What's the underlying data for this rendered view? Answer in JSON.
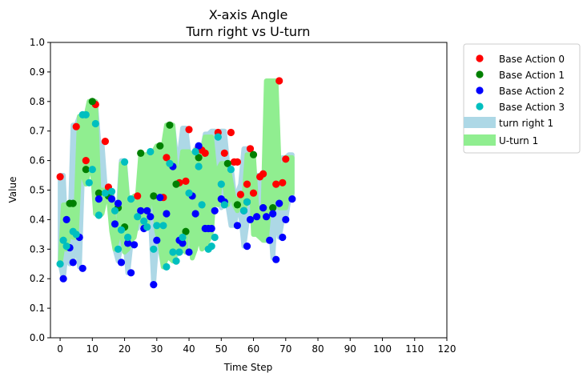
{
  "chart_data": {
    "type": "scatter",
    "title_line1": "X-axis Angle",
    "title_line2": "Turn right vs U-turn",
    "xlabel": "Time Step",
    "ylabel": "Value",
    "xlim": [
      -3,
      120
    ],
    "ylim": [
      0.0,
      1.0
    ],
    "xticks": [
      0,
      10,
      20,
      30,
      40,
      50,
      60,
      70,
      80,
      90,
      100,
      110,
      120
    ],
    "yticks": [
      0.0,
      0.1,
      0.2,
      0.3,
      0.4,
      0.5,
      0.6,
      0.7,
      0.8,
      0.9,
      1.0
    ],
    "xtick_labels": [
      "0",
      "10",
      "20",
      "30",
      "40",
      "50",
      "60",
      "70",
      "80",
      "90",
      "100",
      "110",
      "120"
    ],
    "ytick_labels": [
      "0.0",
      "0.1",
      "0.2",
      "0.3",
      "0.4",
      "0.5",
      "0.6",
      "0.7",
      "0.8",
      "0.9",
      "1.0"
    ],
    "legend_position": "outside upper right",
    "bands": [
      {
        "name": "turn right 1",
        "color": "#add8e6",
        "x": [
          0,
          1,
          2,
          3,
          4,
          5,
          6,
          7,
          8,
          9,
          10,
          11,
          12,
          13,
          14,
          15,
          16,
          17,
          18,
          19,
          20,
          21,
          22,
          23,
          24,
          25,
          26,
          27,
          28,
          29,
          30,
          31,
          32,
          33,
          34,
          35,
          36,
          37,
          38,
          39,
          40,
          41,
          42,
          43,
          44,
          45,
          46,
          47,
          48,
          49,
          50,
          51,
          52,
          53,
          54,
          55,
          56,
          57,
          58,
          59,
          60,
          61,
          62,
          63,
          64,
          65,
          66,
          67,
          68,
          69,
          70,
          71,
          72
        ],
        "lower": [
          0.25,
          0.2,
          0.3,
          0.25,
          0.26,
          0.34,
          0.24,
          0.57,
          0.57,
          0.57,
          0.79,
          0.42,
          0.47,
          0.49,
          0.51,
          0.49,
          0.39,
          0.3,
          0.26,
          0.32,
          0.34,
          0.22,
          0.32,
          0.37,
          0.37,
          0.43,
          0.44,
          0.44,
          0.41,
          0.18,
          0.33,
          0.3,
          0.24,
          0.42,
          0.29,
          0.26,
          0.28,
          0.34,
          0.32,
          0.29,
          0.3,
          0.29,
          0.42,
          0.36,
          0.37,
          0.37,
          0.34,
          0.43,
          0.45,
          0.46,
          0.44,
          0.45,
          0.45,
          0.38,
          0.38,
          0.43,
          0.42,
          0.31,
          0.39,
          0.4,
          0.4,
          0.44,
          0.41,
          0.33,
          0.33,
          0.42,
          0.27,
          0.46,
          0.34,
          0.4,
          0.4,
          0.47,
          0.47
        ],
        "upper": [
          0.55,
          0.55,
          0.3,
          0.35,
          0.72,
          0.72,
          0.75,
          0.75,
          0.75,
          0.8,
          0.8,
          0.8,
          0.66,
          0.66,
          0.51,
          0.49,
          0.49,
          0.44,
          0.43,
          0.6,
          0.6,
          0.47,
          0.47,
          0.47,
          0.47,
          0.49,
          0.49,
          0.44,
          0.63,
          0.63,
          0.48,
          0.48,
          0.61,
          0.61,
          0.72,
          0.72,
          0.62,
          0.62,
          0.71,
          0.71,
          0.62,
          0.62,
          0.64,
          0.64,
          0.63,
          0.69,
          0.69,
          0.7,
          0.7,
          0.62,
          0.7,
          0.7,
          0.59,
          0.59,
          0.49,
          0.49,
          0.52,
          0.64,
          0.64,
          0.48,
          0.48,
          0.55,
          0.55,
          0.53,
          0.53,
          0.52,
          0.52,
          0.52,
          0.52,
          0.61,
          0.61,
          0.62,
          0.62
        ]
      },
      {
        "name": "U-turn 1",
        "color": "#90ee90",
        "x": [
          0,
          1,
          2,
          3,
          4,
          5,
          6,
          7,
          8,
          9,
          10,
          11,
          12,
          13,
          14,
          15,
          16,
          17,
          18,
          19,
          20,
          21,
          22,
          23,
          24,
          25,
          26,
          27,
          28,
          29,
          30,
          31,
          32,
          33,
          34,
          35,
          36,
          37,
          38,
          39,
          40,
          41,
          42,
          43,
          44,
          45,
          46,
          47,
          48,
          49,
          50,
          51,
          52,
          53,
          54,
          55,
          56,
          57,
          58,
          59,
          60,
          61,
          62,
          63,
          64,
          65,
          66,
          67,
          68,
          69,
          70,
          71,
          72
        ],
        "lower": [
          0.25,
          0.32,
          0.3,
          0.36,
          0.34,
          0.34,
          0.57,
          0.55,
          0.52,
          0.57,
          0.57,
          0.42,
          0.41,
          0.42,
          0.47,
          0.48,
          0.36,
          0.3,
          0.34,
          0.36,
          0.29,
          0.3,
          0.33,
          0.34,
          0.4,
          0.4,
          0.37,
          0.37,
          0.48,
          0.48,
          0.36,
          0.32,
          0.24,
          0.27,
          0.27,
          0.26,
          0.29,
          0.34,
          0.3,
          0.29,
          0.57,
          0.27,
          0.3,
          0.35,
          0.3,
          0.31,
          0.33,
          0.36,
          0.52,
          0.45,
          0.57,
          0.52,
          0.45,
          0.5,
          0.45,
          0.43,
          0.45,
          0.43,
          0.47,
          0.62,
          0.35,
          0.35,
          0.34,
          0.33,
          0.33,
          0.45,
          0.44,
          0.46,
          0.44,
          0.44,
          0.44,
          0.49,
          0.49
        ],
        "upper": [
          0.25,
          0.45,
          0.45,
          0.45,
          0.45,
          0.45,
          0.75,
          0.75,
          0.75,
          0.8,
          0.8,
          0.8,
          0.5,
          0.5,
          0.5,
          0.48,
          0.48,
          0.36,
          0.36,
          0.59,
          0.59,
          0.46,
          0.46,
          0.48,
          0.48,
          0.62,
          0.62,
          0.62,
          0.63,
          0.63,
          0.65,
          0.65,
          0.65,
          0.72,
          0.72,
          0.72,
          0.55,
          0.55,
          0.63,
          0.63,
          0.63,
          0.61,
          0.61,
          0.62,
          0.62,
          0.68,
          0.68,
          0.68,
          0.57,
          0.57,
          0.59,
          0.59,
          0.59,
          0.53,
          0.47,
          0.47,
          0.47,
          0.47,
          0.62,
          0.62,
          0.62,
          0.44,
          0.44,
          0.44,
          0.87,
          0.87,
          0.87,
          0.87,
          0.57,
          0.57,
          0.61,
          0.61,
          0.61
        ]
      }
    ],
    "series": [
      {
        "name": "Base Action 0",
        "color": "#ff0000",
        "x": [
          0,
          5,
          8,
          11,
          14,
          15,
          24,
          32,
          33,
          37,
          39,
          40,
          43,
          44,
          45,
          49,
          51,
          53,
          54,
          55,
          56,
          58,
          59,
          60,
          62,
          63,
          67,
          68,
          69,
          70
        ],
        "y": [
          0.545,
          0.715,
          0.6,
          0.79,
          0.665,
          0.51,
          0.48,
          0.475,
          0.61,
          0.525,
          0.53,
          0.705,
          0.645,
          0.635,
          0.625,
          0.695,
          0.625,
          0.695,
          0.595,
          0.595,
          0.485,
          0.52,
          0.64,
          0.49,
          0.545,
          0.555,
          0.52,
          0.87,
          0.525,
          0.605
        ]
      },
      {
        "name": "Base Action 1",
        "color": "#008000",
        "x": [
          3,
          4,
          8,
          10,
          12,
          15,
          18,
          20,
          25,
          29,
          31,
          34,
          36,
          39,
          43,
          52,
          55,
          58,
          60,
          63,
          66
        ],
        "y": [
          0.455,
          0.455,
          0.57,
          0.8,
          0.49,
          0.48,
          0.44,
          0.375,
          0.625,
          0.48,
          0.65,
          0.72,
          0.52,
          0.36,
          0.61,
          0.59,
          0.45,
          0.46,
          0.62,
          0.44,
          0.44
        ]
      },
      {
        "name": "Base Action 2",
        "color": "#0000ff",
        "x": [
          1,
          2,
          3,
          4,
          6,
          7,
          12,
          16,
          17,
          18,
          19,
          21,
          22,
          23,
          25,
          26,
          27,
          28,
          29,
          30,
          31,
          33,
          35,
          37,
          38,
          40,
          41,
          42,
          43,
          45,
          46,
          47,
          48,
          50,
          51,
          55,
          57,
          58,
          59,
          61,
          63,
          64,
          65,
          66,
          67,
          68,
          69,
          70,
          72
        ],
        "y": [
          0.2,
          0.4,
          0.305,
          0.255,
          0.34,
          0.235,
          0.47,
          0.47,
          0.385,
          0.455,
          0.255,
          0.32,
          0.22,
          0.315,
          0.43,
          0.37,
          0.43,
          0.41,
          0.18,
          0.33,
          0.475,
          0.42,
          0.58,
          0.33,
          0.32,
          0.29,
          0.48,
          0.42,
          0.65,
          0.37,
          0.37,
          0.37,
          0.43,
          0.47,
          0.46,
          0.38,
          0.43,
          0.31,
          0.4,
          0.41,
          0.44,
          0.41,
          0.33,
          0.42,
          0.265,
          0.455,
          0.34,
          0.4,
          0.47
        ]
      },
      {
        "name": "Base Action 3",
        "color": "#00bfbf",
        "x": [
          0,
          1,
          2,
          4,
          5,
          7,
          8,
          9,
          10,
          11,
          12,
          14,
          16,
          17,
          18,
          19,
          20,
          21,
          22,
          24,
          26,
          27,
          28,
          29,
          30,
          32,
          33,
          34,
          35,
          36,
          37,
          38,
          40,
          42,
          43,
          44,
          46,
          47,
          48,
          49,
          50,
          51,
          53,
          57,
          58
        ],
        "y": [
          0.25,
          0.33,
          0.31,
          0.36,
          0.35,
          0.755,
          0.755,
          0.525,
          0.57,
          0.725,
          0.415,
          0.49,
          0.495,
          0.43,
          0.3,
          0.365,
          0.595,
          0.34,
          0.47,
          0.41,
          0.395,
          0.375,
          0.63,
          0.3,
          0.38,
          0.38,
          0.24,
          0.59,
          0.29,
          0.26,
          0.29,
          0.34,
          0.49,
          0.63,
          0.58,
          0.45,
          0.3,
          0.31,
          0.34,
          0.68,
          0.52,
          0.45,
          0.57,
          0.43,
          0.46
        ]
      }
    ]
  }
}
